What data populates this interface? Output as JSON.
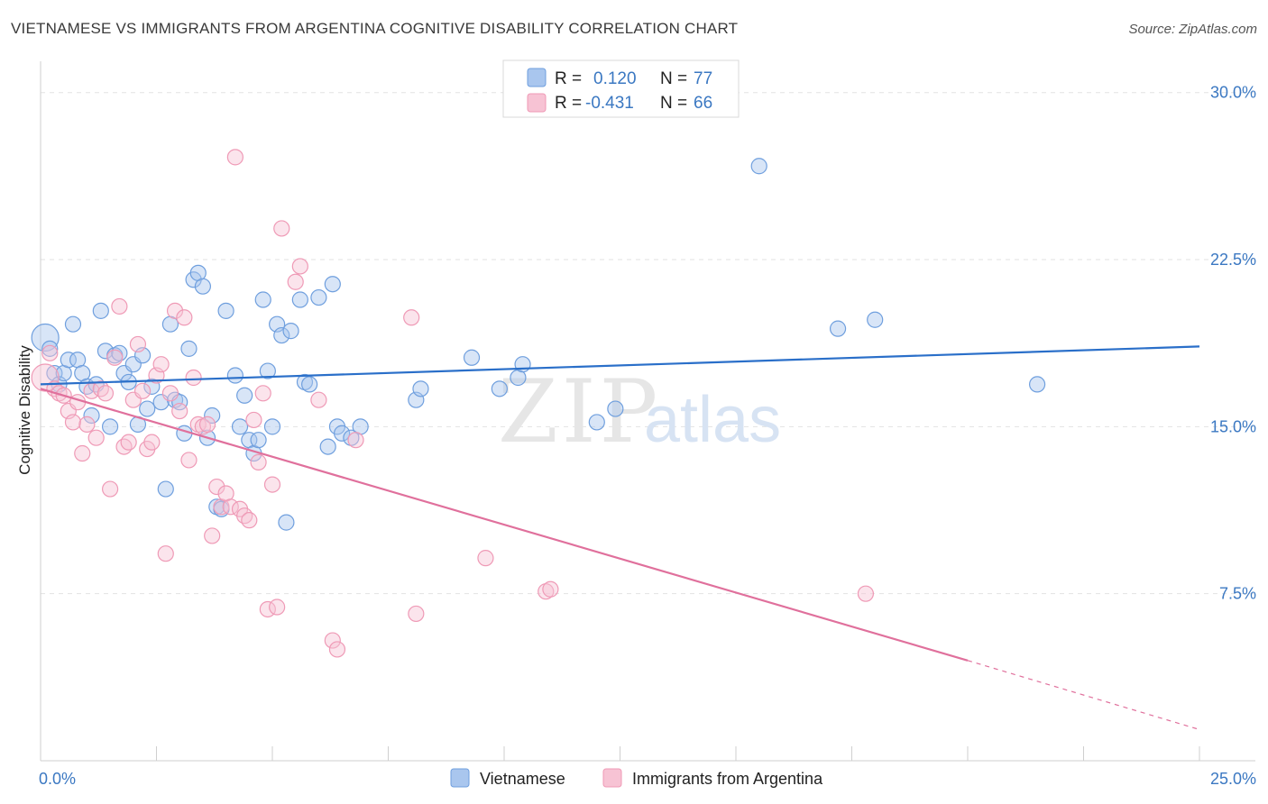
{
  "title": "VIETNAMESE VS IMMIGRANTS FROM ARGENTINA COGNITIVE DISABILITY CORRELATION CHART",
  "source": "Source: ZipAtlas.com",
  "watermark": {
    "zip": "ZIP",
    "atlas": "atlas"
  },
  "chart_data": {
    "type": "scatter",
    "title": "VIETNAMESE VS IMMIGRANTS FROM ARGENTINA COGNITIVE DISABILITY CORRELATION CHART",
    "xlabel": "",
    "ylabel": "Cognitive Disability",
    "xlim": [
      0,
      25
    ],
    "ylim": [
      0,
      31
    ],
    "x_tick_labels": [
      "0.0%",
      "25.0%"
    ],
    "y_ticks": [
      7.5,
      15.0,
      22.5,
      30.0
    ],
    "y_tick_labels": [
      "7.5%",
      "15.0%",
      "22.5%",
      "30.0%"
    ],
    "legend": {
      "entries": [
        {
          "r_label": "R =",
          "r_value": "0.120",
          "n_label": "N =",
          "n_value": "77"
        },
        {
          "r_label": "R =",
          "r_value": "-0.431",
          "n_label": "N =",
          "n_value": "66"
        }
      ]
    },
    "series": [
      {
        "name": "Vietnamese",
        "color": "#6f9fde",
        "fill": "#a9c6ee",
        "line_color": "#2a6fc9",
        "trend": {
          "x0": 0,
          "y0": 16.9,
          "x1": 25,
          "y1": 18.6
        },
        "points": [
          [
            0.1,
            19.0,
            "big"
          ],
          [
            0.2,
            18.5
          ],
          [
            0.3,
            17.4
          ],
          [
            0.4,
            16.9
          ],
          [
            0.5,
            17.4
          ],
          [
            0.6,
            18.0
          ],
          [
            0.7,
            19.6
          ],
          [
            0.8,
            18.0
          ],
          [
            0.9,
            17.4
          ],
          [
            1.0,
            16.8
          ],
          [
            1.1,
            15.5
          ],
          [
            1.2,
            16.9
          ],
          [
            1.3,
            20.2
          ],
          [
            1.4,
            18.4
          ],
          [
            1.5,
            15.0
          ],
          [
            1.6,
            18.2
          ],
          [
            1.7,
            18.3
          ],
          [
            1.8,
            17.4
          ],
          [
            1.9,
            17.0
          ],
          [
            2.0,
            17.8
          ],
          [
            2.1,
            15.1
          ],
          [
            2.2,
            18.2
          ],
          [
            2.3,
            15.8
          ],
          [
            2.4,
            16.8
          ],
          [
            2.6,
            16.1
          ],
          [
            2.7,
            12.2
          ],
          [
            2.8,
            19.6
          ],
          [
            2.9,
            16.2
          ],
          [
            3.0,
            16.1
          ],
          [
            3.1,
            14.7
          ],
          [
            3.2,
            18.5
          ],
          [
            3.3,
            21.6
          ],
          [
            3.4,
            21.9
          ],
          [
            3.5,
            21.3
          ],
          [
            3.6,
            14.5
          ],
          [
            3.7,
            15.5
          ],
          [
            3.8,
            11.4
          ],
          [
            3.9,
            11.3
          ],
          [
            4.0,
            20.2
          ],
          [
            4.2,
            17.3
          ],
          [
            4.3,
            15.0
          ],
          [
            4.4,
            16.4
          ],
          [
            4.5,
            14.4
          ],
          [
            4.6,
            13.8
          ],
          [
            4.7,
            14.4
          ],
          [
            4.8,
            20.7
          ],
          [
            4.9,
            17.5
          ],
          [
            5.0,
            15.0
          ],
          [
            5.1,
            19.6
          ],
          [
            5.2,
            19.1
          ],
          [
            5.3,
            10.7
          ],
          [
            5.4,
            19.3
          ],
          [
            5.6,
            20.7
          ],
          [
            5.7,
            17.0
          ],
          [
            5.8,
            16.9
          ],
          [
            6.0,
            20.8
          ],
          [
            6.2,
            14.1
          ],
          [
            6.3,
            21.4
          ],
          [
            6.4,
            15.0
          ],
          [
            6.5,
            14.7
          ],
          [
            6.7,
            14.5
          ],
          [
            6.9,
            15.0
          ],
          [
            8.1,
            16.2
          ],
          [
            8.2,
            16.7
          ],
          [
            9.3,
            18.1
          ],
          [
            9.9,
            16.7
          ],
          [
            10.3,
            17.2
          ],
          [
            10.4,
            17.8
          ],
          [
            12.0,
            15.2
          ],
          [
            12.4,
            15.8
          ],
          [
            15.5,
            26.7
          ],
          [
            17.2,
            19.4
          ],
          [
            18.0,
            19.8
          ],
          [
            21.5,
            16.9
          ]
        ]
      },
      {
        "name": "Immigrants from Argentina",
        "color": "#ef9ab6",
        "fill": "#f7c3d4",
        "line_color": "#e0709c",
        "trend": {
          "x0": 0,
          "y0": 16.7,
          "x1": 20,
          "y1": 4.5
        },
        "trend_dashed": {
          "x0": 20,
          "y0": 4.5,
          "x1": 25,
          "y1": 1.4
        },
        "points": [
          [
            0.1,
            17.2,
            "big"
          ],
          [
            0.2,
            18.3
          ],
          [
            0.3,
            16.7
          ],
          [
            0.4,
            16.5
          ],
          [
            0.5,
            16.4
          ],
          [
            0.6,
            15.7
          ],
          [
            0.7,
            15.2
          ],
          [
            0.8,
            16.1
          ],
          [
            0.9,
            13.8
          ],
          [
            1.0,
            15.1
          ],
          [
            1.1,
            16.6
          ],
          [
            1.2,
            14.5
          ],
          [
            1.3,
            16.7
          ],
          [
            1.4,
            16.5
          ],
          [
            1.5,
            12.2
          ],
          [
            1.6,
            18.1
          ],
          [
            1.7,
            20.4
          ],
          [
            1.8,
            14.1
          ],
          [
            1.9,
            14.3
          ],
          [
            2.0,
            16.2
          ],
          [
            2.1,
            18.7
          ],
          [
            2.2,
            16.6
          ],
          [
            2.3,
            14.0
          ],
          [
            2.4,
            14.3
          ],
          [
            2.5,
            17.3
          ],
          [
            2.6,
            17.8
          ],
          [
            2.7,
            9.3
          ],
          [
            2.8,
            16.5
          ],
          [
            2.9,
            20.2
          ],
          [
            3.0,
            15.7
          ],
          [
            3.1,
            19.9
          ],
          [
            3.2,
            13.5
          ],
          [
            3.3,
            17.2
          ],
          [
            3.4,
            15.1
          ],
          [
            3.5,
            15.0
          ],
          [
            3.6,
            15.1
          ],
          [
            3.7,
            10.1
          ],
          [
            3.8,
            12.3
          ],
          [
            3.9,
            11.4
          ],
          [
            4.0,
            12.0
          ],
          [
            4.1,
            11.4
          ],
          [
            4.2,
            27.1
          ],
          [
            4.3,
            11.3
          ],
          [
            4.4,
            11.0
          ],
          [
            4.5,
            10.8
          ],
          [
            4.6,
            15.3
          ],
          [
            4.7,
            13.4
          ],
          [
            4.8,
            16.5
          ],
          [
            4.9,
            6.8
          ],
          [
            5.0,
            12.4
          ],
          [
            5.1,
            6.9
          ],
          [
            5.2,
            23.9
          ],
          [
            5.5,
            21.5
          ],
          [
            5.6,
            22.2
          ],
          [
            6.0,
            16.2
          ],
          [
            6.3,
            5.4
          ],
          [
            6.4,
            5.0
          ],
          [
            6.8,
            14.4
          ],
          [
            8.0,
            19.9
          ],
          [
            8.1,
            6.6
          ],
          [
            9.6,
            9.1
          ],
          [
            10.9,
            7.6
          ],
          [
            11.0,
            7.7
          ],
          [
            17.8,
            7.5
          ]
        ]
      }
    ]
  },
  "bottom_legend": [
    {
      "label": "Vietnamese"
    },
    {
      "label": "Immigrants from Argentina"
    }
  ]
}
